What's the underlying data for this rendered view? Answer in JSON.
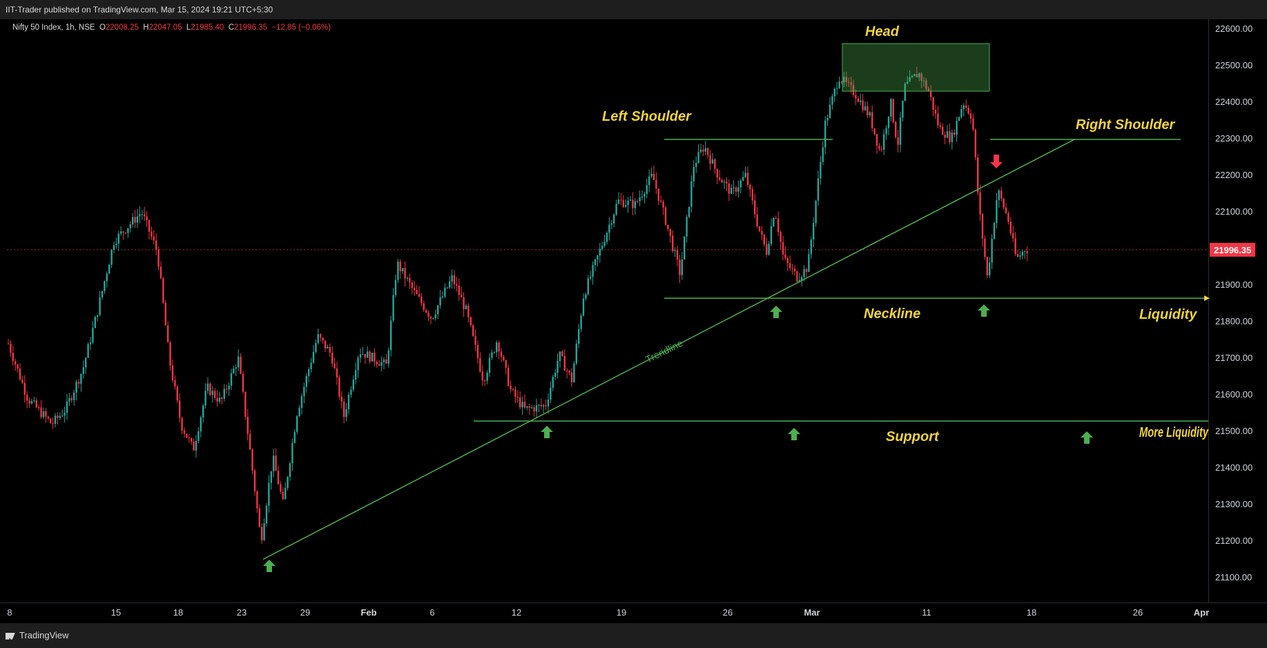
{
  "header": {
    "published": "IIT-Trader published on TradingView.com, Mar 15, 2024 19:21 UTC+5:30"
  },
  "symbol": {
    "name": "Nifty 50 Index, 1h, NSE",
    "o_label": "O",
    "o": "22008.25",
    "h_label": "H",
    "h": "22047.05",
    "l_label": "L",
    "l": "21985.40",
    "c_label": "C",
    "c": "21996.35",
    "change": "−12.85 (−0.06%)"
  },
  "footer": {
    "brand": "TradingView"
  },
  "chart_data": {
    "type": "candlestick",
    "last_price": "21996.35",
    "y_ticks": [
      "22600.00",
      "22500.00",
      "22400.00",
      "22300.00",
      "22200.00",
      "22100.00",
      "22000.00",
      "21900.00",
      "21800.00",
      "21700.00",
      "21600.00",
      "21500.00",
      "21400.00",
      "21300.00",
      "21200.00",
      "21100.00"
    ],
    "y_tick_values": [
      22600,
      22500,
      22400,
      22300,
      22200,
      22100,
      22000,
      21900,
      21800,
      21700,
      21600,
      21500,
      21400,
      21300,
      21200,
      21100
    ],
    "ylim": [
      21040,
      22640
    ],
    "x_ticks": [
      {
        "label": "8",
        "bold": false
      },
      {
        "label": "15",
        "bold": false
      },
      {
        "label": "18",
        "bold": false
      },
      {
        "label": "23",
        "bold": false
      },
      {
        "label": "29",
        "bold": false
      },
      {
        "label": "Feb",
        "bold": true
      },
      {
        "label": "6",
        "bold": false
      },
      {
        "label": "12",
        "bold": false
      },
      {
        "label": "19",
        "bold": false
      },
      {
        "label": "26",
        "bold": false
      },
      {
        "label": "Mar",
        "bold": true
      },
      {
        "label": "11",
        "bold": false
      },
      {
        "label": "18",
        "bold": false
      },
      {
        "label": "26",
        "bold": false
      },
      {
        "label": "Apr",
        "bold": true
      }
    ],
    "annotations": {
      "head": "Head",
      "left_shoulder": "Left Shoulder",
      "right_shoulder": "Right Shoulder",
      "neckline": "Neckline",
      "liquidity": "Liquidity",
      "support": "Support",
      "more_liquidity": "More Liquidity",
      "trendline": "Trendline"
    },
    "levels": {
      "shoulder": 22298,
      "neckline": 21864,
      "support": 21528
    },
    "colors": {
      "up": "#26a69a",
      "down": "#f23645",
      "line": "#4caf50",
      "annotation": "#f0d43a"
    }
  }
}
